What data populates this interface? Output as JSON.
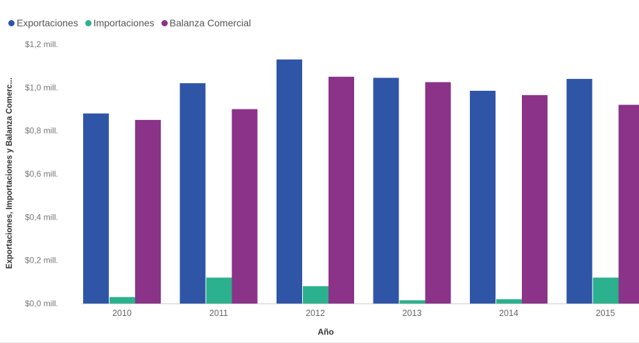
{
  "chart_data": {
    "type": "bar",
    "title": "",
    "xlabel": "Año",
    "ylabel": "Exportaciones, Importaciones y Balanza Comerc...",
    "categories": [
      "2010",
      "2011",
      "2012",
      "2013",
      "2014",
      "2015"
    ],
    "series": [
      {
        "name": "Exportaciones",
        "color": "#2f55a7",
        "values": [
          0.88,
          1.02,
          1.13,
          1.045,
          0.985,
          1.04
        ]
      },
      {
        "name": "Importaciones",
        "color": "#2cb18e",
        "values": [
          0.03,
          0.12,
          0.08,
          0.015,
          0.02,
          0.12
        ]
      },
      {
        "name": "Balanza Comercial",
        "color": "#8a3388",
        "values": [
          0.85,
          0.9,
          1.05,
          1.025,
          0.965,
          0.92
        ]
      }
    ],
    "ylim": [
      0,
      1.2
    ],
    "yticks": [
      0,
      0.2,
      0.4,
      0.6,
      0.8,
      1.0,
      1.2
    ],
    "ytick_labels": [
      "$0,0 mill.",
      "$0,2 mill.",
      "$0,4 mill.",
      "$0,6 mill.",
      "$0,8 mill.",
      "$1,0 mill.",
      "$1,2 mill."
    ],
    "grid": false,
    "legend_position": "top-left"
  }
}
